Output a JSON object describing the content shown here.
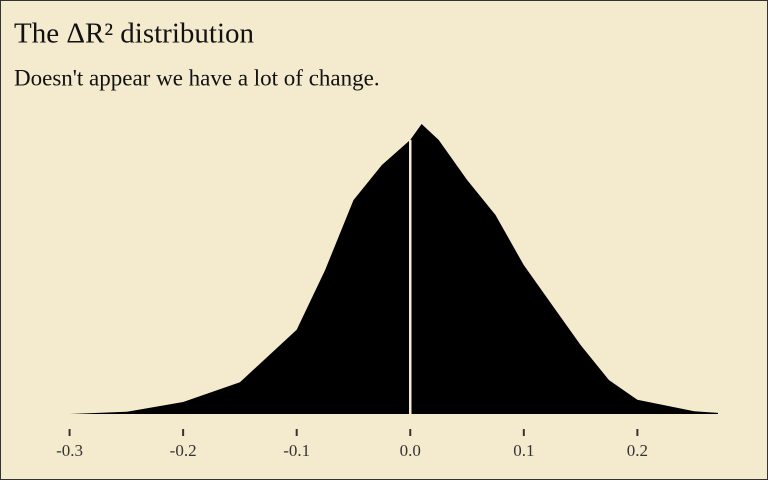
{
  "chart_data": {
    "type": "density",
    "title": "The ΔR² distribution",
    "subtitle": "Doesn't appear we have a lot of change.",
    "x": [
      -0.319,
      -0.3,
      -0.25,
      -0.2,
      -0.15,
      -0.1,
      -0.075,
      -0.05,
      -0.025,
      0,
      0.01,
      0.025,
      0.05,
      0.075,
      0.1,
      0.125,
      0.15,
      0.175,
      0.2,
      0.25,
      0.271
    ],
    "values": [
      0,
      0,
      0.04,
      0.22,
      0.58,
      1.54,
      2.63,
      3.91,
      4.55,
      5.01,
      5.3,
      5.01,
      4.28,
      3.64,
      2.72,
      1.99,
      1.26,
      0.62,
      0.26,
      0.05,
      0.02
    ],
    "color": "#000000",
    "vline": 0,
    "vline_color": "#f4ebcf",
    "xlim": [
      -0.319,
      0.271
    ],
    "ylim": [
      0,
      5.6
    ],
    "xticks": [
      -0.3,
      -0.2,
      -0.1,
      {
        "value": 0,
        "label": "0.0"
      },
      0.1,
      0.2
    ]
  }
}
